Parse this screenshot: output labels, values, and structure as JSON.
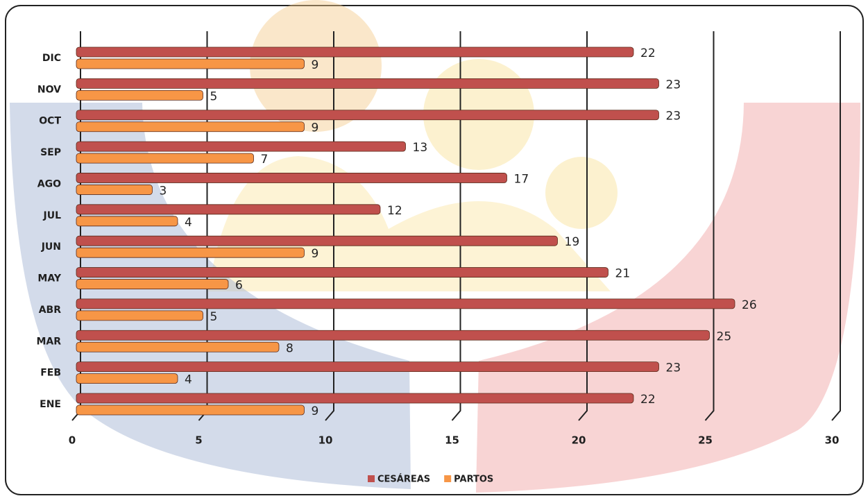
{
  "chart_data": {
    "type": "bar",
    "orientation": "horizontal",
    "categories": [
      "ENE",
      "FEB",
      "MAR",
      "ABR",
      "MAY",
      "JUN",
      "JUL",
      "AGO",
      "SEP",
      "OCT",
      "NOV",
      "DIC"
    ],
    "series": [
      {
        "name": "CESÁREAS",
        "color": "#c0504d",
        "values": [
          22,
          23,
          25,
          26,
          21,
          19,
          12,
          17,
          13,
          23,
          23,
          22
        ]
      },
      {
        "name": "PARTOS",
        "color": "#f79646",
        "values": [
          9,
          4,
          8,
          5,
          6,
          9,
          4,
          3,
          7,
          9,
          5,
          9
        ]
      }
    ],
    "xlim": [
      0,
      30
    ],
    "xticks": [
      0,
      5,
      10,
      15,
      20,
      25,
      30
    ],
    "grid": true,
    "legend": "bottom"
  }
}
